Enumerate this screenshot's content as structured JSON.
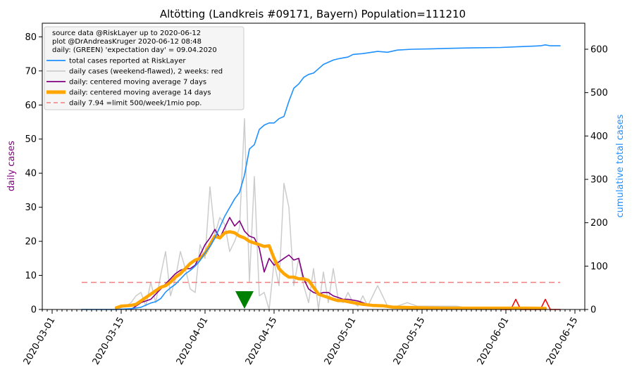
{
  "chart_data": {
    "type": "line",
    "title": "Altötting (Landkreis #09171, Bayern) Population=111210",
    "ylabel_left": "daily cases",
    "ylabel_right": "cumulative total cases",
    "xlabel": "",
    "xlim": [
      "2020-02-28",
      "2020-06-17"
    ],
    "ylim_left": [
      0,
      84
    ],
    "ylim_right": [
      0,
      660
    ],
    "left_ticks": [
      0,
      10,
      20,
      30,
      40,
      50,
      60,
      70,
      80
    ],
    "right_ticks": [
      0,
      100,
      200,
      300,
      400,
      500,
      600
    ],
    "x_ticks": [
      "2020-03-01",
      "2020-03-15",
      "2020-04-01",
      "2020-04-15",
      "2020-05-01",
      "2020-05-15",
      "2020-06-01",
      "2020-06-15"
    ],
    "colors": {
      "cumulative": "#1e90ff",
      "daily": "#cccccc",
      "daily_weekend": "#ff0000",
      "ma7": "#800080",
      "ma14": "#ffa500",
      "limit": "#f08080",
      "expectation": "#008000",
      "left_label": "#800080",
      "right_label": "#1e90ff"
    },
    "legend": {
      "placement": "upper-left",
      "header": [
        "source data @RiskLayer up to 2020-06-12",
        "plot @DrAndreasKruger 2020-06-12 08:48",
        "daily: (GREEN) 'expectation day' = 09.04.2020"
      ],
      "entries": [
        {
          "key": "cumulative",
          "label": "total cases reported at RiskLayer"
        },
        {
          "key": "daily",
          "label": "daily cases (weekend-flawed), 2 weeks: red"
        },
        {
          "key": "ma7",
          "label": "daily: centered moving average 7 days"
        },
        {
          "key": "ma14",
          "label": "daily: centered moving average 14 days"
        },
        {
          "key": "limit",
          "label": "daily 7.94 =limit 500/week/1mio pop."
        }
      ]
    },
    "limit_line": {
      "value": 7.94,
      "x_start": "2020-03-07",
      "x_end": "2020-06-12"
    },
    "expectation_day": "2020-04-09",
    "series": {
      "cumulative": {
        "axis": "right",
        "x": [
          "2020-03-07",
          "2020-03-10",
          "2020-03-14",
          "2020-03-17",
          "2020-03-19",
          "2020-03-21",
          "2020-03-22",
          "2020-03-23",
          "2020-03-24",
          "2020-03-25",
          "2020-03-26",
          "2020-03-27",
          "2020-03-28",
          "2020-03-29",
          "2020-03-30",
          "2020-03-31",
          "2020-04-01",
          "2020-04-02",
          "2020-04-03",
          "2020-04-04",
          "2020-04-05",
          "2020-04-06",
          "2020-04-07",
          "2020-04-08",
          "2020-04-09",
          "2020-04-10",
          "2020-04-11",
          "2020-04-12",
          "2020-04-13",
          "2020-04-14",
          "2020-04-15",
          "2020-04-16",
          "2020-04-17",
          "2020-04-18",
          "2020-04-19",
          "2020-04-20",
          "2020-04-21",
          "2020-04-22",
          "2020-04-23",
          "2020-04-24",
          "2020-04-25",
          "2020-04-26",
          "2020-04-27",
          "2020-04-28",
          "2020-04-29",
          "2020-04-30",
          "2020-05-01",
          "2020-05-03",
          "2020-05-06",
          "2020-05-08",
          "2020-05-10",
          "2020-05-13",
          "2020-05-17",
          "2020-05-20",
          "2020-05-25",
          "2020-05-31",
          "2020-06-04",
          "2020-06-08",
          "2020-06-09",
          "2020-06-10",
          "2020-06-12"
        ],
        "y": [
          0,
          0,
          0,
          2,
          5,
          15,
          18,
          25,
          40,
          50,
          58,
          70,
          82,
          90,
          100,
          113,
          130,
          145,
          165,
          190,
          215,
          235,
          255,
          270,
          310,
          370,
          380,
          415,
          425,
          430,
          430,
          440,
          445,
          480,
          510,
          520,
          535,
          542,
          545,
          555,
          565,
          570,
          575,
          578,
          580,
          582,
          588,
          590,
          595,
          593,
          598,
          600,
          601,
          602,
          603,
          604,
          606,
          608,
          610,
          608,
          608
        ]
      },
      "daily": {
        "axis": "left",
        "x": [
          "2020-03-07",
          "2020-03-14",
          "2020-03-16",
          "2020-03-17",
          "2020-03-18",
          "2020-03-19",
          "2020-03-20",
          "2020-03-21",
          "2020-03-22",
          "2020-03-23",
          "2020-03-24",
          "2020-03-25",
          "2020-03-26",
          "2020-03-27",
          "2020-03-28",
          "2020-03-29",
          "2020-03-30",
          "2020-03-31",
          "2020-04-01",
          "2020-04-02",
          "2020-04-03",
          "2020-04-04",
          "2020-04-05",
          "2020-04-06",
          "2020-04-07",
          "2020-04-08",
          "2020-04-09",
          "2020-04-10",
          "2020-04-11",
          "2020-04-12",
          "2020-04-13",
          "2020-04-14",
          "2020-04-15",
          "2020-04-16",
          "2020-04-17",
          "2020-04-18",
          "2020-04-19",
          "2020-04-20",
          "2020-04-21",
          "2020-04-22",
          "2020-04-23",
          "2020-04-24",
          "2020-04-25",
          "2020-04-26",
          "2020-04-27",
          "2020-04-28",
          "2020-04-29",
          "2020-04-30",
          "2020-05-01",
          "2020-05-02",
          "2020-05-03",
          "2020-05-04",
          "2020-05-06",
          "2020-05-08",
          "2020-05-10",
          "2020-05-12",
          "2020-05-14",
          "2020-05-18",
          "2020-05-22",
          "2020-05-26",
          "2020-05-30"
        ],
        "y": [
          0,
          0,
          1,
          2,
          4,
          5,
          1,
          8,
          2,
          10,
          17,
          4,
          9,
          17,
          12,
          6,
          5,
          19,
          15,
          36,
          22,
          27,
          25,
          17,
          20,
          24,
          56,
          8,
          39,
          4,
          5,
          0,
          14,
          7,
          37,
          30,
          7,
          15,
          7,
          2,
          12,
          0,
          11,
          2,
          12,
          3,
          2,
          5,
          2,
          1,
          4,
          1,
          7,
          1,
          1,
          2,
          1,
          1,
          1,
          0,
          0
        ]
      },
      "daily_weekend": {
        "axis": "left",
        "x": [
          "2020-05-31",
          "2020-06-02",
          "2020-06-03",
          "2020-06-04",
          "2020-06-06",
          "2020-06-08",
          "2020-06-09",
          "2020-06-10",
          "2020-06-12"
        ],
        "y": [
          0,
          0,
          3,
          0,
          0,
          0,
          3,
          0,
          0
        ]
      },
      "ma7": {
        "axis": "left",
        "x": [
          "2020-03-17",
          "2020-03-18",
          "2020-03-19",
          "2020-03-20",
          "2020-03-21",
          "2020-03-22",
          "2020-03-23",
          "2020-03-24",
          "2020-03-25",
          "2020-03-26",
          "2020-03-27",
          "2020-03-28",
          "2020-03-29",
          "2020-03-30",
          "2020-03-31",
          "2020-04-01",
          "2020-04-02",
          "2020-04-03",
          "2020-04-04",
          "2020-04-05",
          "2020-04-06",
          "2020-04-07",
          "2020-04-08",
          "2020-04-09",
          "2020-04-10",
          "2020-04-11",
          "2020-04-12",
          "2020-04-13",
          "2020-04-14",
          "2020-04-15",
          "2020-04-16",
          "2020-04-17",
          "2020-04-18",
          "2020-04-19",
          "2020-04-20",
          "2020-04-21",
          "2020-04-22",
          "2020-04-23",
          "2020-04-24",
          "2020-04-25",
          "2020-04-26",
          "2020-04-27",
          "2020-04-28",
          "2020-04-29",
          "2020-04-30",
          "2020-05-02",
          "2020-05-04",
          "2020-05-06",
          "2020-05-10",
          "2020-05-15",
          "2020-05-20",
          "2020-05-25",
          "2020-05-30",
          "2020-06-05",
          "2020-06-09"
        ],
        "y": [
          0,
          1,
          2,
          2.5,
          3,
          4.5,
          6,
          7.5,
          9,
          10.5,
          11.5,
          12,
          12,
          13,
          16,
          19,
          21,
          23.5,
          21,
          24,
          27,
          24.5,
          26,
          23,
          21.5,
          21,
          18,
          11,
          15,
          13,
          14,
          15,
          16,
          14.5,
          15,
          9,
          6,
          5,
          4.5,
          5,
          5,
          4,
          3.5,
          3,
          3,
          2.5,
          1.5,
          1.2,
          0.8,
          0.5,
          0.3,
          0.2,
          0.2,
          0.5,
          0.3
        ]
      },
      "ma14": {
        "axis": "left",
        "x": [
          "2020-03-14",
          "2020-03-15",
          "2020-03-17",
          "2020-03-18",
          "2020-03-19",
          "2020-03-20",
          "2020-03-21",
          "2020-03-22",
          "2020-03-23",
          "2020-03-24",
          "2020-03-25",
          "2020-03-26",
          "2020-03-27",
          "2020-03-28",
          "2020-03-29",
          "2020-03-30",
          "2020-03-31",
          "2020-04-01",
          "2020-04-02",
          "2020-04-03",
          "2020-04-04",
          "2020-04-05",
          "2020-04-06",
          "2020-04-07",
          "2020-04-08",
          "2020-04-09",
          "2020-04-10",
          "2020-04-11",
          "2020-04-12",
          "2020-04-13",
          "2020-04-14",
          "2020-04-15",
          "2020-04-16",
          "2020-04-17",
          "2020-04-18",
          "2020-04-19",
          "2020-04-20",
          "2020-04-21",
          "2020-04-22",
          "2020-04-23",
          "2020-04-24",
          "2020-04-25",
          "2020-04-26",
          "2020-04-27",
          "2020-04-28",
          "2020-04-29",
          "2020-04-30",
          "2020-05-01",
          "2020-05-03",
          "2020-05-05",
          "2020-05-07",
          "2020-05-09",
          "2020-05-12",
          "2020-05-15",
          "2020-05-20",
          "2020-05-25",
          "2020-05-30",
          "2020-06-03",
          "2020-06-06",
          "2020-06-09"
        ],
        "y": [
          0.5,
          1,
          1.2,
          1.5,
          2.5,
          3.5,
          4.5,
          5.5,
          6.5,
          7,
          8,
          9.5,
          10.5,
          12,
          13.5,
          14.5,
          15,
          16.5,
          19,
          21.5,
          21,
          22.5,
          22.8,
          22.5,
          21.5,
          21,
          20,
          19.5,
          19,
          18.5,
          18.7,
          15,
          12,
          10.5,
          9.5,
          9.5,
          9,
          9,
          8.5,
          6.5,
          4.5,
          4,
          3.5,
          3,
          2.6,
          2.6,
          2.3,
          2,
          1.5,
          1.2,
          1.1,
          0.7,
          0.6,
          0.5,
          0.4,
          0.4,
          0.4,
          0.4,
          0.4,
          0.3
        ]
      }
    }
  }
}
